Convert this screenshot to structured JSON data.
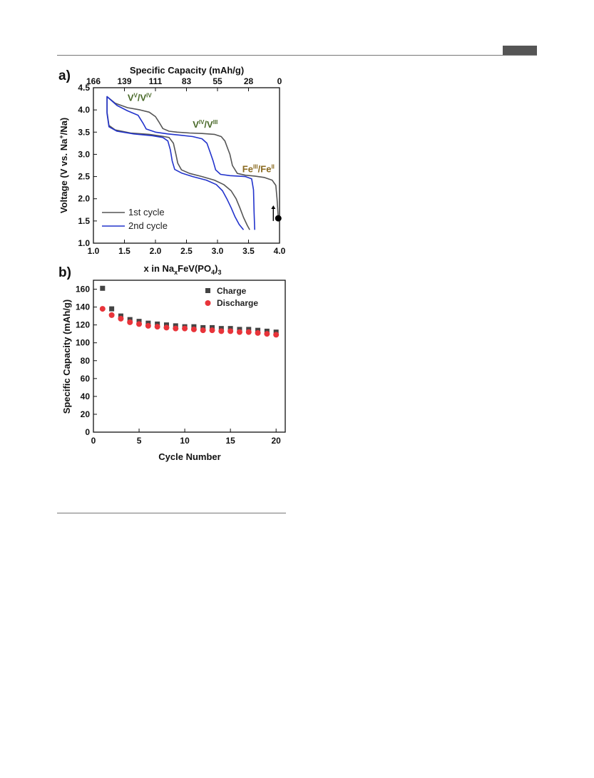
{
  "chart_data": [
    {
      "panel_label": "a)",
      "type": "line",
      "xlabel": "x in NaxFeV(PO4)3",
      "xlabel_parts": {
        "prefix": "x in Na",
        "sub1": "x",
        "mid": "FeV(PO",
        "sub2": "4",
        "suffix": ")",
        "sub3": "3"
      },
      "ylabel": "Voltage (V vs. Na+/Na)",
      "ylabel_parts": {
        "prefix": "Voltage (V vs. Na",
        "sup": "+",
        "suffix": "/Na)"
      },
      "top_xlabel": "Specific Capacity (mAh/g)",
      "xlim": [
        1.0,
        4.0
      ],
      "ylim": [
        1.0,
        4.5
      ],
      "xticks": [
        "1.0",
        "1.5",
        "2.0",
        "2.5",
        "3.0",
        "3.5",
        "4.0"
      ],
      "yticks": [
        "1.0",
        "1.5",
        "2.0",
        "2.5",
        "3.0",
        "3.5",
        "4.0",
        "4.5"
      ],
      "top_ticks": [
        {
          "label": "166",
          "x": 1.0
        },
        {
          "label": "139",
          "x": 1.5
        },
        {
          "label": "111",
          "x": 2.0
        },
        {
          "label": "83",
          "x": 2.5
        },
        {
          "label": "55",
          "x": 3.0
        },
        {
          "label": "28",
          "x": 3.5
        },
        {
          "label": "0",
          "x": 4.0
        }
      ],
      "annotations": [
        {
          "base": "V",
          "sup1": "V",
          "sep": "/V",
          "sup2": "IV",
          "x": 1.55,
          "y": 4.2,
          "color": "#4a6a2a"
        },
        {
          "base": "V",
          "sup1": "IV",
          "sep": "/V",
          "sup2": "III",
          "x": 2.6,
          "y": 3.6,
          "color": "#4a6a2a"
        },
        {
          "base": "Fe",
          "sup1": "III",
          "sep": "/Fe",
          "sup2": "II",
          "x": 3.4,
          "y": 2.6,
          "color": "#8a6a20"
        }
      ],
      "start_marker": {
        "x": 3.98,
        "y": 1.56
      },
      "arrow": {
        "x": 3.9,
        "y_from": 1.5,
        "y_to": 1.85
      },
      "legend": "bottom-left",
      "series": [
        {
          "name": "1st cycle",
          "color": "#555555",
          "points": [
            [
              3.98,
              1.56
            ],
            [
              3.96,
              2.0
            ],
            [
              3.94,
              2.3
            ],
            [
              3.88,
              2.42
            ],
            [
              3.75,
              2.48
            ],
            [
              3.6,
              2.51
            ],
            [
              3.45,
              2.53
            ],
            [
              3.32,
              2.57
            ],
            [
              3.24,
              2.75
            ],
            [
              3.2,
              3.0
            ],
            [
              3.16,
              3.15
            ],
            [
              3.12,
              3.3
            ],
            [
              3.06,
              3.4
            ],
            [
              2.95,
              3.45
            ],
            [
              2.75,
              3.47
            ],
            [
              2.55,
              3.48
            ],
            [
              2.35,
              3.5
            ],
            [
              2.22,
              3.52
            ],
            [
              2.12,
              3.58
            ],
            [
              2.06,
              3.72
            ],
            [
              2.0,
              3.85
            ],
            [
              1.9,
              3.95
            ],
            [
              1.75,
              4.0
            ],
            [
              1.55,
              4.05
            ],
            [
              1.35,
              4.15
            ],
            [
              1.22,
              4.3
            ],
            [
              1.22,
              3.95
            ],
            [
              1.25,
              3.65
            ],
            [
              1.35,
              3.55
            ],
            [
              1.6,
              3.48
            ],
            [
              1.9,
              3.45
            ],
            [
              2.1,
              3.41
            ],
            [
              2.22,
              3.38
            ],
            [
              2.29,
              3.25
            ],
            [
              2.33,
              3.0
            ],
            [
              2.36,
              2.8
            ],
            [
              2.42,
              2.65
            ],
            [
              2.55,
              2.57
            ],
            [
              2.75,
              2.5
            ],
            [
              2.95,
              2.42
            ],
            [
              3.1,
              2.32
            ],
            [
              3.22,
              2.18
            ],
            [
              3.3,
              2.0
            ],
            [
              3.36,
              1.8
            ],
            [
              3.42,
              1.58
            ],
            [
              3.48,
              1.4
            ],
            [
              3.52,
              1.3
            ]
          ]
        },
        {
          "name": "2nd cycle",
          "color": "#2233cc",
          "points": [
            [
              3.6,
              1.3
            ],
            [
              3.59,
              1.7
            ],
            [
              3.58,
              2.2
            ],
            [
              3.55,
              2.45
            ],
            [
              3.45,
              2.5
            ],
            [
              3.2,
              2.52
            ],
            [
              3.05,
              2.55
            ],
            [
              2.97,
              2.65
            ],
            [
              2.93,
              2.85
            ],
            [
              2.88,
              3.05
            ],
            [
              2.83,
              3.25
            ],
            [
              2.75,
              3.35
            ],
            [
              2.6,
              3.4
            ],
            [
              2.4,
              3.43
            ],
            [
              2.2,
              3.46
            ],
            [
              2.0,
              3.5
            ],
            [
              1.85,
              3.57
            ],
            [
              1.8,
              3.7
            ],
            [
              1.72,
              3.88
            ],
            [
              1.55,
              3.98
            ],
            [
              1.38,
              4.1
            ],
            [
              1.22,
              4.3
            ],
            [
              1.22,
              3.92
            ],
            [
              1.25,
              3.62
            ],
            [
              1.38,
              3.52
            ],
            [
              1.65,
              3.46
            ],
            [
              1.95,
              3.42
            ],
            [
              2.12,
              3.38
            ],
            [
              2.2,
              3.3
            ],
            [
              2.24,
              3.1
            ],
            [
              2.27,
              2.85
            ],
            [
              2.31,
              2.66
            ],
            [
              2.42,
              2.58
            ],
            [
              2.6,
              2.5
            ],
            [
              2.82,
              2.42
            ],
            [
              2.98,
              2.32
            ],
            [
              3.08,
              2.18
            ],
            [
              3.15,
              2.0
            ],
            [
              3.22,
              1.8
            ],
            [
              3.28,
              1.6
            ],
            [
              3.35,
              1.42
            ],
            [
              3.42,
              1.3
            ]
          ]
        }
      ]
    },
    {
      "panel_label": "b)",
      "type": "scatter",
      "xlabel": "Cycle Number",
      "ylabel": "Specific Capacity (mAh/g)",
      "xlim": [
        0,
        21
      ],
      "ylim": [
        0,
        170
      ],
      "xticks": [
        "0",
        "5",
        "10",
        "15",
        "20"
      ],
      "yticks": [
        "0",
        "20",
        "40",
        "60",
        "80",
        "100",
        "120",
        "140",
        "160"
      ],
      "legend": "top-right",
      "x": [
        1,
        2,
        3,
        4,
        5,
        6,
        7,
        8,
        9,
        10,
        11,
        12,
        13,
        14,
        15,
        16,
        17,
        18,
        19,
        20
      ],
      "series": [
        {
          "name": "Charge",
          "marker": "square",
          "color": "#444444",
          "values": [
            161,
            138,
            130,
            126,
            124,
            122,
            121,
            120,
            119,
            118,
            118,
            117,
            117,
            116,
            116,
            115,
            115,
            114,
            113,
            112
          ]
        },
        {
          "name": "Discharge",
          "marker": "circle",
          "color": "#e8343a",
          "values": [
            138,
            131,
            127,
            123,
            121,
            119,
            118,
            117,
            116,
            116,
            115,
            114,
            114,
            113,
            113,
            112,
            112,
            111,
            110,
            109
          ]
        }
      ]
    }
  ]
}
